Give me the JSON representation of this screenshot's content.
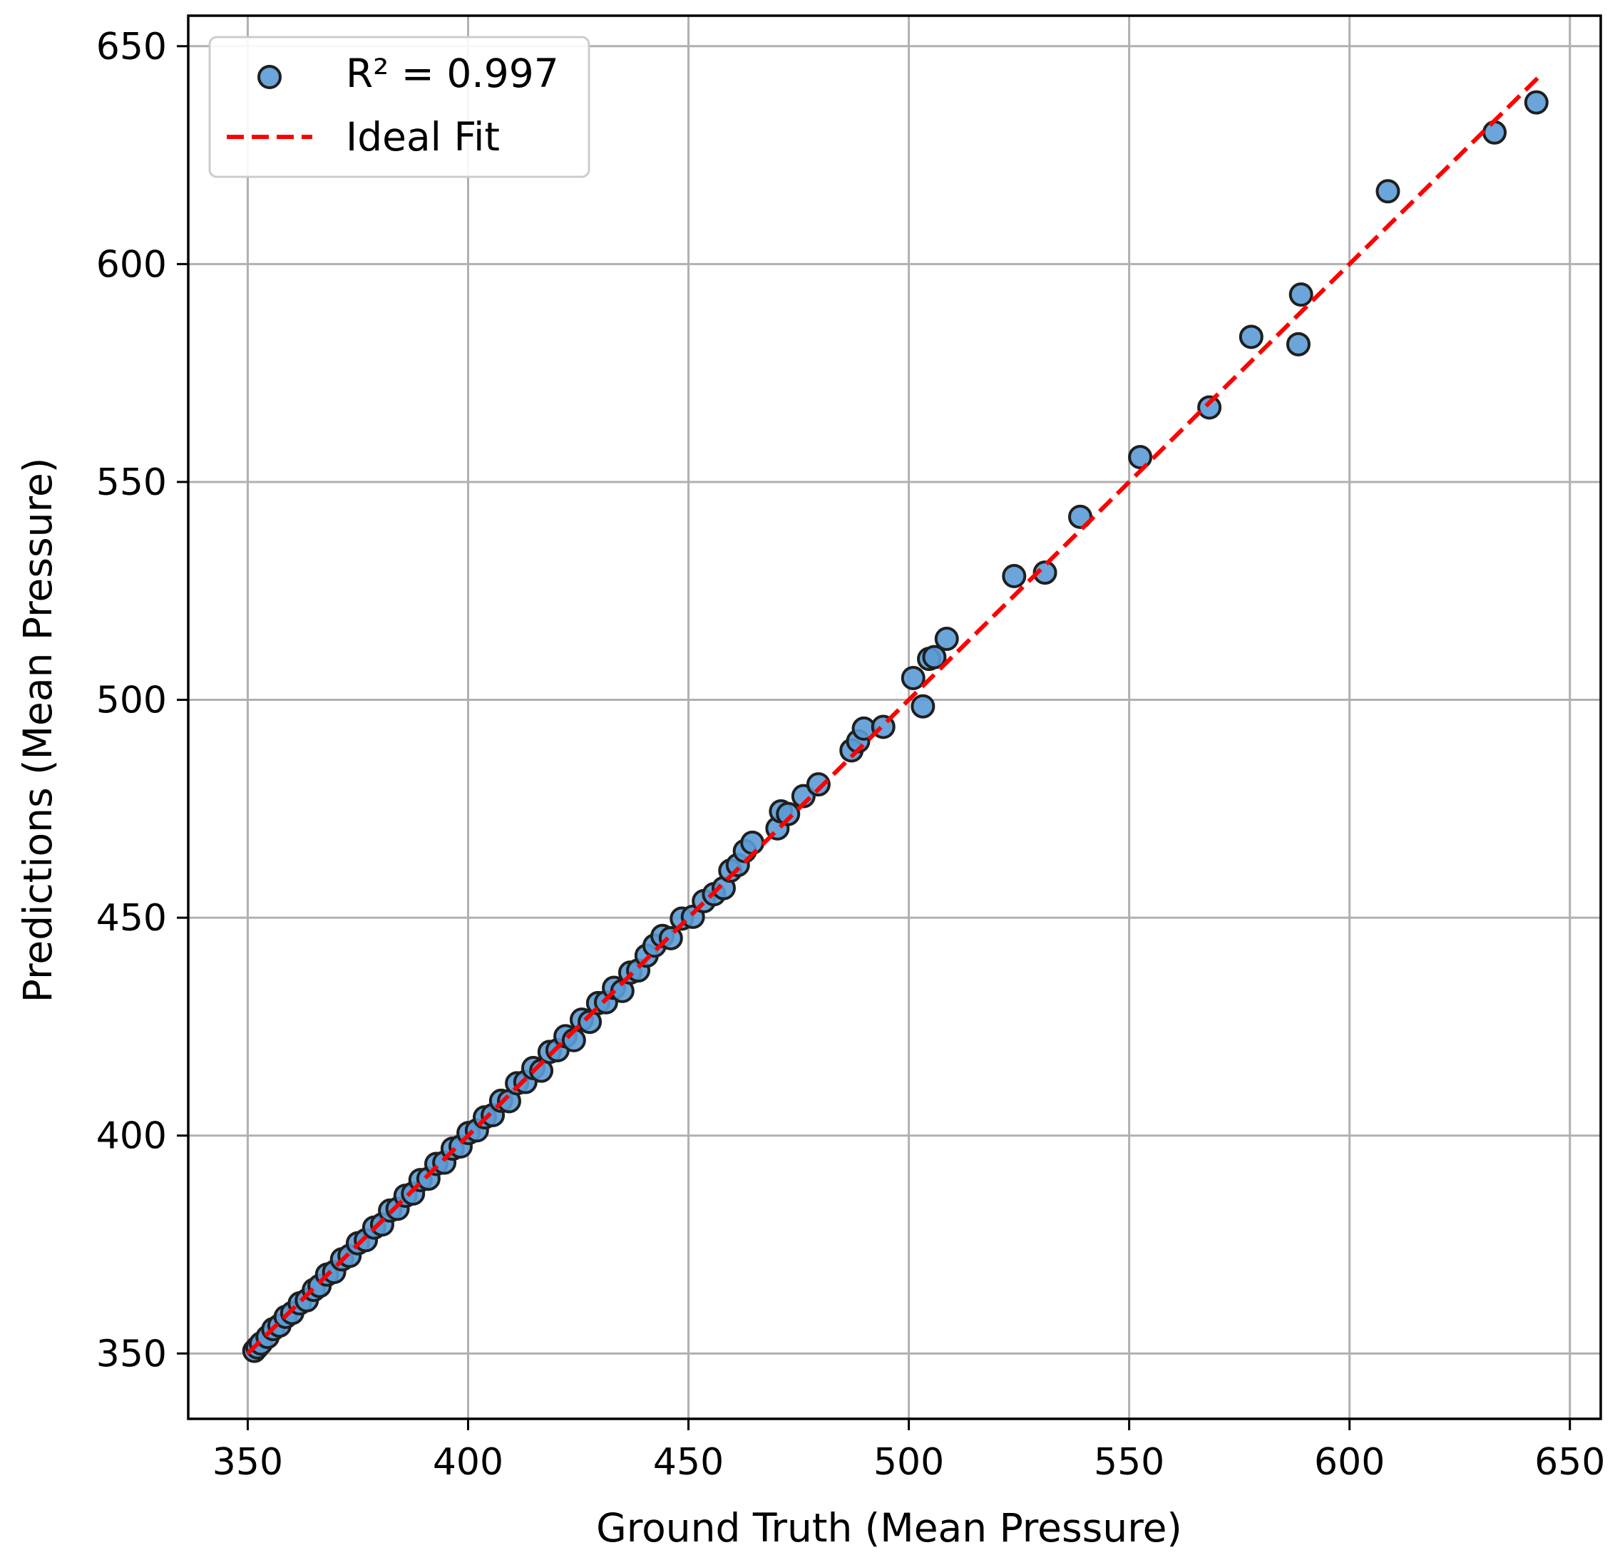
{
  "chart_data": {
    "type": "scatter",
    "title": "",
    "xlabel": "Ground Truth (Mean Pressure)",
    "ylabel": "Predictions (Mean Pressure)",
    "xlim": [
      336.5,
      657
    ],
    "ylim": [
      335,
      657
    ],
    "xticks": [
      350,
      400,
      450,
      500,
      550,
      600,
      650
    ],
    "yticks": [
      350,
      400,
      450,
      500,
      550,
      600,
      650
    ],
    "xtick_labels": [
      "350",
      "400",
      "450",
      "500",
      "550",
      "600",
      "650"
    ],
    "ytick_labels": [
      "350",
      "400",
      "450",
      "500",
      "550",
      "600",
      "650"
    ],
    "grid": true,
    "legend_position": "top-left",
    "colors": {
      "points": "#5b9bd5",
      "point_edge": "#1f1f1f",
      "ideal_line": "#ff0000",
      "grid": "#b0b0b0"
    },
    "series": [
      {
        "name": "R² = 0.997",
        "kind": "scatter",
        "points": [
          [
            351.5,
            350.6
          ],
          [
            352.2,
            351.4
          ],
          [
            353,
            352.3
          ],
          [
            354.5,
            353.8
          ],
          [
            355.8,
            355.6
          ],
          [
            357.2,
            356.4
          ],
          [
            358.6,
            358.4
          ],
          [
            360.1,
            359.3
          ],
          [
            361.8,
            361.5
          ],
          [
            363.4,
            362.2
          ],
          [
            365,
            364.6
          ],
          [
            366.3,
            365.5
          ],
          [
            368,
            368.1
          ],
          [
            369.6,
            368.7
          ],
          [
            371.4,
            371.6
          ],
          [
            373.1,
            372.4
          ],
          [
            375,
            375.3
          ],
          [
            376.8,
            376
          ],
          [
            378.7,
            378.9
          ],
          [
            380.5,
            379.6
          ],
          [
            382.3,
            382.8
          ],
          [
            384,
            383.2
          ],
          [
            385.8,
            386.2
          ],
          [
            387.5,
            386.7
          ],
          [
            389.2,
            389.8
          ],
          [
            391,
            390.1
          ],
          [
            392.8,
            393.5
          ],
          [
            394.6,
            393.8
          ],
          [
            396.5,
            397
          ],
          [
            398.3,
            397.5
          ],
          [
            400.1,
            400.6
          ],
          [
            402,
            401.2
          ],
          [
            403.8,
            404.2
          ],
          [
            405.6,
            404.7
          ],
          [
            407.5,
            408
          ],
          [
            409.3,
            407.9
          ],
          [
            411.1,
            412
          ],
          [
            413,
            412.3
          ],
          [
            414.8,
            415.5
          ],
          [
            416.6,
            414.9
          ],
          [
            418.5,
            419.2
          ],
          [
            420.3,
            419.6
          ],
          [
            422.1,
            422.8
          ],
          [
            424,
            421.9
          ],
          [
            425.8,
            426.6
          ],
          [
            427.6,
            426.1
          ],
          [
            429.5,
            430.4
          ],
          [
            431.3,
            430.6
          ],
          [
            433.1,
            433.9
          ],
          [
            435,
            433.2
          ],
          [
            436.8,
            437.4
          ],
          [
            438.6,
            437.9
          ],
          [
            440.5,
            441.3
          ],
          [
            442.3,
            443.6
          ],
          [
            444.1,
            445.8
          ],
          [
            446,
            445.3
          ],
          [
            448.5,
            449.8
          ],
          [
            451,
            450.2
          ],
          [
            453.5,
            453.8
          ],
          [
            455.8,
            455.4
          ],
          [
            458,
            456.8
          ],
          [
            459.5,
            460.8
          ],
          [
            461.2,
            462.1
          ],
          [
            462.8,
            465.3
          ],
          [
            464.5,
            467.2
          ],
          [
            470.2,
            470.5
          ],
          [
            471,
            474.4
          ],
          [
            472.6,
            473.8
          ],
          [
            476.1,
            477.9
          ],
          [
            479.5,
            480.6
          ],
          [
            487,
            488.4
          ],
          [
            488.5,
            490.5
          ],
          [
            489.8,
            493.4
          ],
          [
            494.2,
            493.8
          ],
          [
            501,
            505
          ],
          [
            503.2,
            498.5
          ],
          [
            504.6,
            509.4
          ],
          [
            505.8,
            509.8
          ],
          [
            508.6,
            514
          ],
          [
            523.9,
            528.4
          ],
          [
            530.9,
            529.2
          ],
          [
            538.9,
            542
          ],
          [
            552.5,
            555.7
          ],
          [
            568.2,
            567.1
          ],
          [
            577.7,
            583.3
          ],
          [
            588.4,
            581.6
          ],
          [
            589,
            593
          ],
          [
            608.7,
            616.7
          ],
          [
            632.9,
            630.2
          ],
          [
            642.4,
            637.1
          ]
        ]
      },
      {
        "name": "Ideal Fit",
        "kind": "line",
        "style": "dashed",
        "x": [
          350,
          643
        ],
        "y": [
          350,
          643
        ]
      }
    ]
  }
}
